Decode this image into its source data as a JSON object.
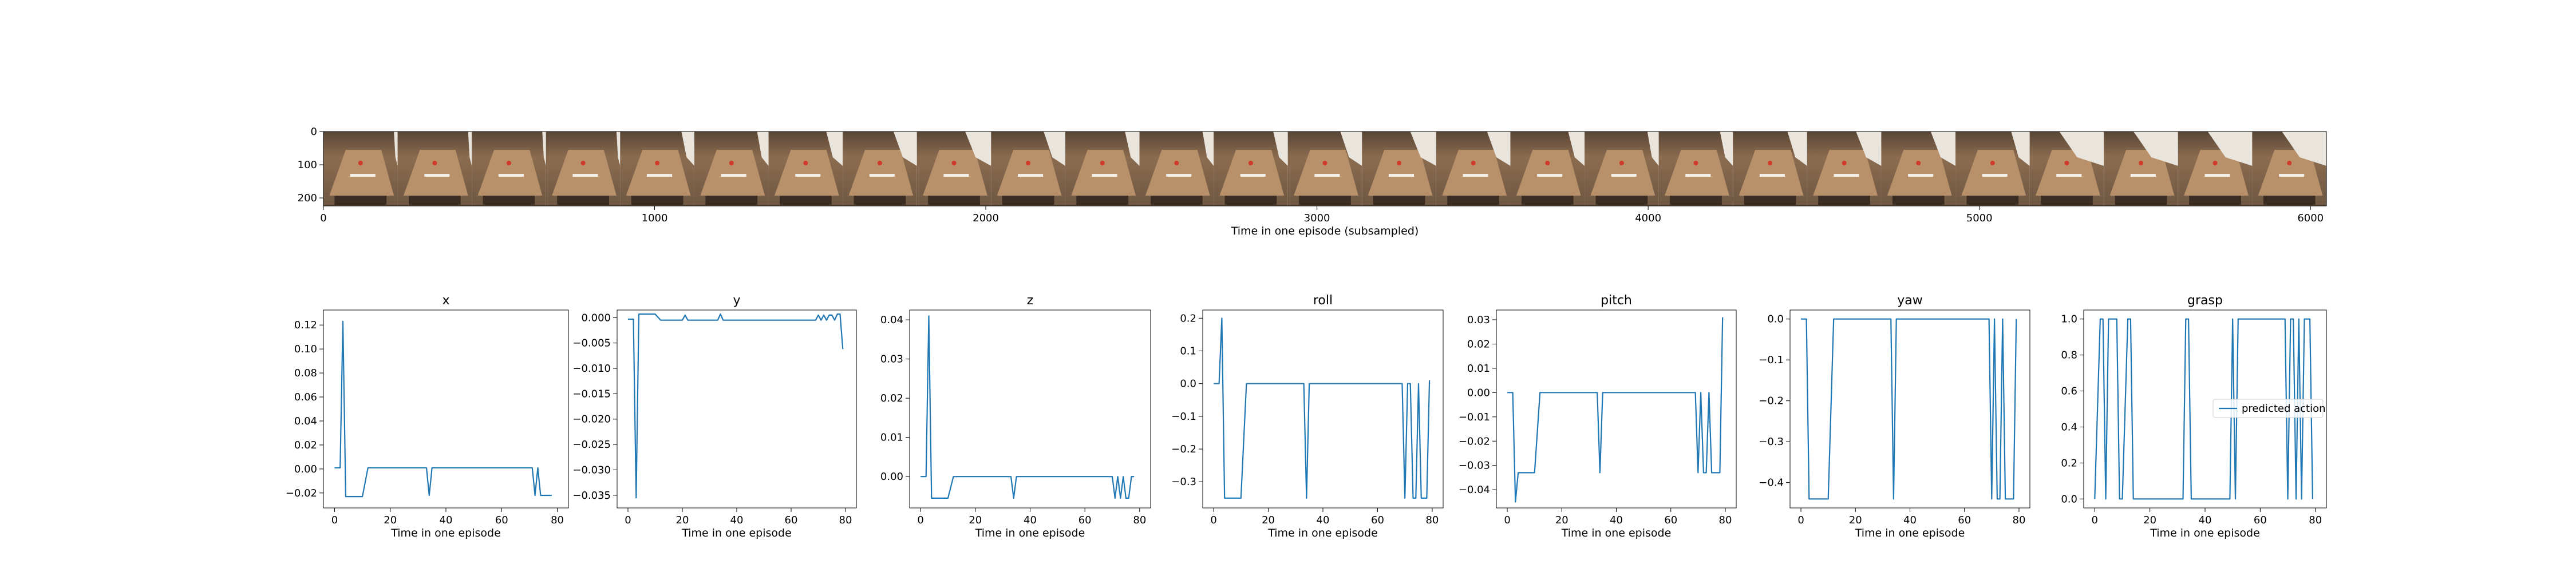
{
  "filmstrip": {
    "xlabel": "Time in one episode (subsampled)",
    "x_ticks": [
      0,
      1000,
      2000,
      3000,
      4000,
      5000,
      6000
    ],
    "y_ticks": [
      0,
      100,
      200
    ],
    "xlim": [
      0,
      6048
    ],
    "ylim": [
      0,
      224
    ],
    "frame_count": 27
  },
  "chart_data": [
    {
      "type": "line",
      "title": "x",
      "xlabel": "Time in one episode",
      "ylabel": "",
      "xlim": [
        -4,
        84
      ],
      "ylim": [
        -0.0325,
        0.1325
      ],
      "x_ticks": [
        0,
        20,
        40,
        60,
        80
      ],
      "y_ticks": [
        -0.02,
        0.0,
        0.02,
        0.04,
        0.06,
        0.08,
        0.1,
        0.12
      ],
      "y_tick_labels": [
        "−0.02",
        "0.00",
        "0.02",
        "0.04",
        "0.06",
        "0.08",
        "0.10",
        "0.12"
      ],
      "color": "#1f77b4",
      "series": [
        {
          "x": [
            0,
            2,
            3,
            4,
            10,
            12,
            33,
            34,
            35,
            71,
            72,
            73,
            74,
            75,
            76,
            78
          ],
          "values": [
            0.001,
            0.001,
            0.123,
            -0.023,
            -0.023,
            0.001,
            0.001,
            -0.022,
            0.001,
            0.001,
            -0.022,
            0.001,
            -0.022,
            -0.022,
            -0.022,
            -0.022
          ]
        }
      ]
    },
    {
      "type": "line",
      "title": "y",
      "xlabel": "Time in one episode",
      "ylabel": "",
      "xlim": [
        -4,
        84
      ],
      "ylim": [
        -0.0375,
        0.0015
      ],
      "x_ticks": [
        0,
        20,
        40,
        60,
        80
      ],
      "y_ticks": [
        0.0,
        -0.005,
        -0.01,
        -0.015,
        -0.02,
        -0.025,
        -0.03,
        -0.035
      ],
      "y_tick_labels": [
        "0.000",
        "−0.005",
        "−0.010",
        "−0.015",
        "−0.020",
        "−0.025",
        "−0.030",
        "−0.035"
      ],
      "color": "#1f77b4",
      "series": [
        {
          "x": [
            0,
            2,
            3,
            4,
            10,
            12,
            20,
            21,
            22,
            31,
            33,
            34,
            35,
            69,
            70,
            71,
            72,
            73,
            74,
            75,
            76,
            77,
            78,
            79
          ],
          "values": [
            -0.0003,
            -0.0003,
            -0.0355,
            0.0007,
            0.0007,
            -0.0005,
            -0.0005,
            0.0005,
            -0.0005,
            -0.0005,
            -0.0005,
            0.0007,
            -0.0005,
            -0.0005,
            0.0005,
            -0.0005,
            0.0005,
            -0.0005,
            0.0005,
            0.0005,
            -0.0005,
            0.0007,
            0.0007,
            -0.0062
          ]
        }
      ]
    },
    {
      "type": "line",
      "title": "z",
      "xlabel": "Time in one episode",
      "ylabel": "",
      "xlim": [
        -4,
        84
      ],
      "ylim": [
        -0.008,
        0.0425
      ],
      "x_ticks": [
        0,
        20,
        40,
        60,
        80
      ],
      "y_ticks": [
        0.0,
        0.01,
        0.02,
        0.03,
        0.04
      ],
      "y_tick_labels": [
        "0.00",
        "0.01",
        "0.02",
        "0.03",
        "0.04"
      ],
      "color": "#1f77b4",
      "series": [
        {
          "x": [
            0,
            2,
            3,
            4,
            10,
            12,
            33,
            34,
            35,
            69,
            70,
            71,
            72,
            73,
            74,
            75,
            76,
            77,
            78
          ],
          "values": [
            0.0,
            0.0,
            0.041,
            -0.0055,
            -0.0055,
            0.0,
            0.0,
            -0.0055,
            0.0,
            0.0,
            0.0,
            -0.0055,
            0.0,
            -0.0055,
            0.0,
            -0.0055,
            -0.0055,
            0.0,
            0.0
          ]
        }
      ]
    },
    {
      "type": "line",
      "title": "roll",
      "xlabel": "Time in one episode",
      "ylabel": "",
      "xlim": [
        -4,
        84
      ],
      "ylim": [
        -0.38,
        0.225
      ],
      "x_ticks": [
        0,
        20,
        40,
        60,
        80
      ],
      "y_ticks": [
        0.2,
        0.1,
        0.0,
        -0.1,
        -0.2,
        -0.3
      ],
      "y_tick_labels": [
        "0.2",
        "0.1",
        "0.0",
        "−0.1",
        "−0.2",
        "−0.3"
      ],
      "color": "#1f77b4",
      "series": [
        {
          "x": [
            0,
            2,
            3,
            4,
            10,
            12,
            33,
            34,
            35,
            69,
            70,
            71,
            72,
            73,
            74,
            75,
            76,
            77,
            78,
            79
          ],
          "values": [
            0.0,
            0.0,
            0.2,
            -0.35,
            -0.35,
            0.0,
            0.0,
            -0.35,
            0.0,
            0.0,
            -0.35,
            0.0,
            0.0,
            -0.35,
            -0.35,
            0.0,
            -0.35,
            -0.35,
            -0.35,
            0.01
          ]
        }
      ]
    },
    {
      "type": "line",
      "title": "pitch",
      "xlabel": "Time in one episode",
      "ylabel": "",
      "xlim": [
        -4,
        84
      ],
      "ylim": [
        -0.0475,
        0.034
      ],
      "x_ticks": [
        0,
        20,
        40,
        60,
        80
      ],
      "y_ticks": [
        0.03,
        0.02,
        0.01,
        0.0,
        -0.01,
        -0.02,
        -0.03,
        -0.04
      ],
      "y_tick_labels": [
        "0.03",
        "0.02",
        "0.01",
        "0.00",
        "−0.01",
        "−0.02",
        "−0.03",
        "−0.04"
      ],
      "color": "#1f77b4",
      "series": [
        {
          "x": [
            0,
            2,
            3,
            4,
            5,
            10,
            12,
            33,
            34,
            35,
            69,
            70,
            71,
            72,
            73,
            74,
            75,
            76,
            77,
            78,
            79
          ],
          "values": [
            0.0,
            0.0,
            -0.045,
            -0.033,
            -0.033,
            -0.033,
            0.0,
            0.0,
            -0.033,
            0.0,
            0.0,
            -0.033,
            0.0,
            -0.033,
            -0.033,
            0.0,
            -0.033,
            -0.033,
            -0.033,
            -0.033,
            0.031
          ]
        }
      ]
    },
    {
      "type": "line",
      "title": "yaw",
      "xlabel": "Time in one episode",
      "ylabel": "",
      "xlim": [
        -4,
        84
      ],
      "ylim": [
        -0.462,
        0.022
      ],
      "x_ticks": [
        0,
        20,
        40,
        60,
        80
      ],
      "y_ticks": [
        0.0,
        -0.1,
        -0.2,
        -0.3,
        -0.4
      ],
      "y_tick_labels": [
        "0.0",
        "−0.1",
        "−0.2",
        "−0.3",
        "−0.4"
      ],
      "color": "#1f77b4",
      "series": [
        {
          "x": [
            0,
            2,
            3,
            4,
            5,
            10,
            12,
            33,
            34,
            35,
            69,
            70,
            71,
            72,
            73,
            74,
            75,
            76,
            77,
            78,
            79
          ],
          "values": [
            0.0,
            0.0,
            -0.44,
            -0.44,
            -0.44,
            -0.44,
            0.0,
            0.0,
            -0.44,
            0.0,
            0.0,
            -0.44,
            0.0,
            -0.44,
            -0.44,
            0.0,
            -0.44,
            -0.44,
            -0.44,
            -0.44,
            0.0
          ]
        }
      ]
    },
    {
      "type": "line",
      "title": "grasp",
      "xlabel": "Time in one episode",
      "ylabel": "",
      "xlim": [
        -4,
        84
      ],
      "ylim": [
        -0.05,
        1.05
      ],
      "x_ticks": [
        0,
        20,
        40,
        60,
        80
      ],
      "y_ticks": [
        0.0,
        0.2,
        0.4,
        0.6,
        0.8,
        1.0
      ],
      "y_tick_labels": [
        "0.0",
        "0.2",
        "0.4",
        "0.6",
        "0.8",
        "1.0"
      ],
      "color": "#1f77b4",
      "legend": {
        "label": "predicted action",
        "placement": "center-right"
      },
      "series": [
        {
          "name": "predicted action",
          "x": [
            0,
            2,
            3,
            4,
            5,
            6,
            7,
            8,
            9,
            10,
            12,
            13,
            14,
            32,
            33,
            34,
            35,
            36,
            49,
            50,
            51,
            52,
            68,
            69,
            70,
            71,
            72,
            73,
            74,
            75,
            76,
            77,
            78,
            79
          ],
          "values": [
            0.0,
            1.0,
            1.0,
            0.0,
            1.0,
            1.0,
            1.0,
            1.0,
            0.0,
            0.0,
            1.0,
            1.0,
            0.0,
            0.0,
            1.0,
            1.0,
            0.0,
            0.0,
            0.0,
            1.0,
            0.0,
            1.0,
            1.0,
            1.0,
            0.0,
            1.0,
            1.0,
            0.0,
            1.0,
            0.0,
            1.0,
            1.0,
            1.0,
            0.0
          ]
        }
      ]
    }
  ]
}
